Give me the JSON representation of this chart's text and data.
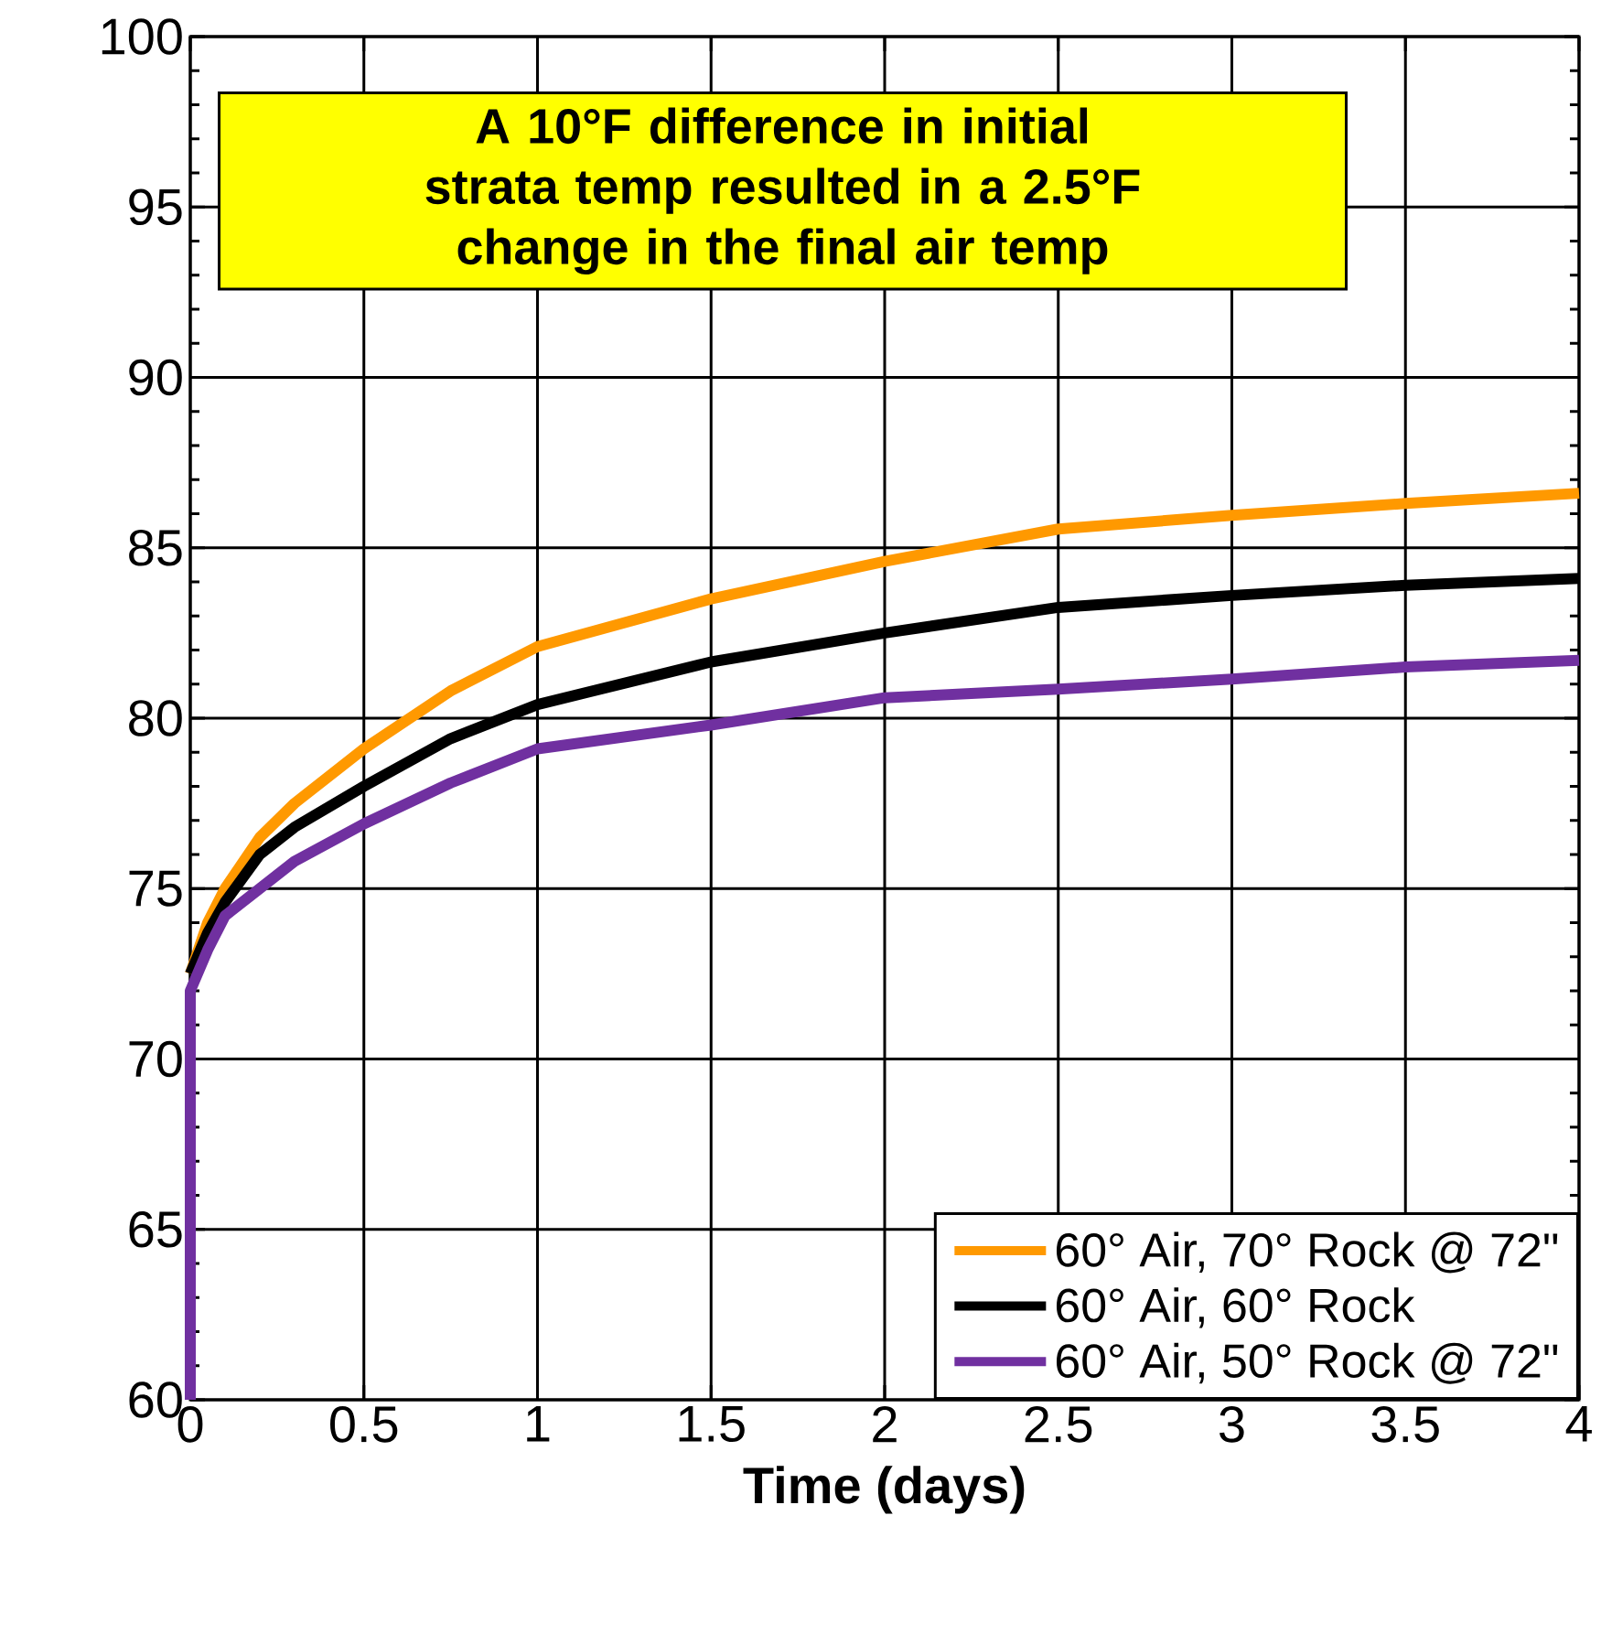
{
  "chart_data": {
    "type": "line",
    "xlabel": "Time (days)",
    "annotations": [
      "A 10°F difference in initial strata temp resulted in a 2.5°F change in the final air temp"
    ],
    "xlim": [
      0,
      4
    ],
    "ylim": [
      60,
      100
    ],
    "xticks": [
      0,
      0.5,
      1,
      1.5,
      2,
      2.5,
      3,
      3.5,
      4
    ],
    "yticks": [
      60,
      65,
      70,
      75,
      80,
      85,
      90,
      95,
      100
    ],
    "grid": true,
    "legend": "bottom right",
    "line_style": "solid",
    "marker": "none",
    "series": [
      {
        "name": "60° Air, 70° Rock @ 72\"",
        "color": "#ff9900",
        "x": [
          0,
          0.05,
          0.1,
          0.2,
          0.3,
          0.5,
          0.75,
          1,
          1.5,
          2,
          2.5,
          3,
          3.5,
          4
        ],
        "values": [
          72.5,
          74.0,
          75.0,
          76.5,
          77.5,
          79.1,
          80.8,
          82.1,
          83.5,
          84.6,
          85.55,
          85.95,
          86.3,
          86.6
        ]
      },
      {
        "name": "60° Air, 60° Rock",
        "color": "#000000",
        "x": [
          0,
          0.05,
          0.1,
          0.2,
          0.3,
          0.5,
          0.75,
          1,
          1.5,
          2,
          2.5,
          3,
          3.5,
          4
        ],
        "values": [
          72.5,
          73.7,
          74.6,
          76.0,
          76.8,
          78.0,
          79.4,
          80.4,
          81.65,
          82.5,
          83.25,
          83.6,
          83.9,
          84.1
        ]
      },
      {
        "name": "60° Air, 50° Rock @ 72\"",
        "color": "#7030a0",
        "x": [
          0,
          0,
          0.05,
          0.1,
          0.2,
          0.3,
          0.5,
          0.75,
          1,
          1.5,
          2,
          2.5,
          3,
          3.5,
          4
        ],
        "values": [
          60,
          72.0,
          73.2,
          74.2,
          75.0,
          75.8,
          76.9,
          78.1,
          79.1,
          79.8,
          80.6,
          80.85,
          81.15,
          81.5,
          81.7
        ]
      }
    ]
  }
}
